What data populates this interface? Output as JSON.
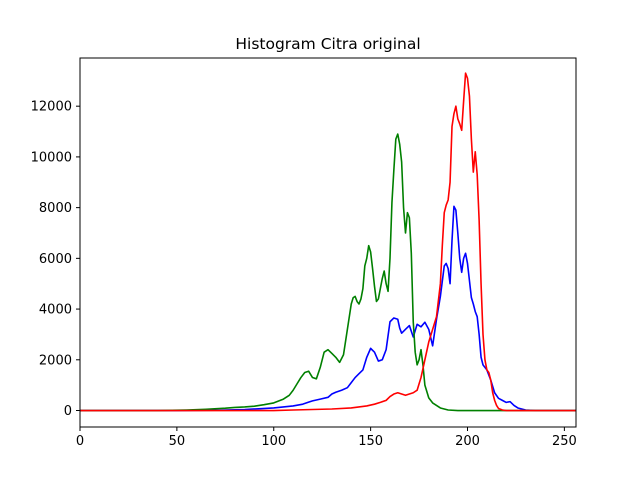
{
  "chart_data": {
    "type": "line",
    "title": "Histogram Citra original",
    "xlabel": "",
    "ylabel": "",
    "xlim": [
      0,
      256
    ],
    "ylim": [
      -650,
      13900
    ],
    "xticks": [
      0,
      50,
      100,
      150,
      200,
      250
    ],
    "yticks": [
      0,
      2000,
      4000,
      6000,
      8000,
      10000,
      12000
    ],
    "grid": false,
    "legend": "none",
    "series": [
      {
        "color": "#0000ff",
        "points": [
          [
            0,
            0
          ],
          [
            50,
            0
          ],
          [
            70,
            10
          ],
          [
            85,
            40
          ],
          [
            100,
            100
          ],
          [
            110,
            180
          ],
          [
            115,
            250
          ],
          [
            118,
            330
          ],
          [
            120,
            380
          ],
          [
            124,
            450
          ],
          [
            128,
            520
          ],
          [
            130,
            650
          ],
          [
            132,
            720
          ],
          [
            135,
            800
          ],
          [
            138,
            900
          ],
          [
            140,
            1100
          ],
          [
            142,
            1300
          ],
          [
            144,
            1450
          ],
          [
            146,
            1600
          ],
          [
            148,
            2100
          ],
          [
            150,
            2450
          ],
          [
            152,
            2300
          ],
          [
            154,
            1950
          ],
          [
            156,
            2000
          ],
          [
            158,
            2400
          ],
          [
            160,
            3500
          ],
          [
            162,
            3650
          ],
          [
            164,
            3600
          ],
          [
            165,
            3250
          ],
          [
            166,
            3050
          ],
          [
            168,
            3200
          ],
          [
            170,
            3350
          ],
          [
            172,
            2900
          ],
          [
            174,
            3400
          ],
          [
            176,
            3300
          ],
          [
            178,
            3480
          ],
          [
            180,
            3200
          ],
          [
            182,
            2550
          ],
          [
            184,
            3600
          ],
          [
            186,
            4500
          ],
          [
            188,
            5700
          ],
          [
            189,
            5800
          ],
          [
            190,
            5600
          ],
          [
            191,
            5000
          ],
          [
            192,
            6700
          ],
          [
            193,
            8050
          ],
          [
            194,
            7900
          ],
          [
            195,
            7000
          ],
          [
            196,
            6000
          ],
          [
            197,
            5450
          ],
          [
            198,
            6000
          ],
          [
            199,
            6200
          ],
          [
            200,
            5800
          ],
          [
            202,
            4450
          ],
          [
            203,
            4200
          ],
          [
            204,
            3900
          ],
          [
            205,
            3700
          ],
          [
            206,
            3000
          ],
          [
            207,
            2100
          ],
          [
            208,
            1800
          ],
          [
            210,
            1600
          ],
          [
            212,
            1200
          ],
          [
            214,
            700
          ],
          [
            216,
            480
          ],
          [
            218,
            400
          ],
          [
            220,
            320
          ],
          [
            222,
            350
          ],
          [
            224,
            200
          ],
          [
            226,
            100
          ],
          [
            230,
            20
          ],
          [
            235,
            0
          ],
          [
            256,
            0
          ]
        ]
      },
      {
        "color": "#008000",
        "points": [
          [
            0,
            0
          ],
          [
            40,
            0
          ],
          [
            55,
            20
          ],
          [
            65,
            50
          ],
          [
            75,
            90
          ],
          [
            80,
            120
          ],
          [
            85,
            140
          ],
          [
            90,
            170
          ],
          [
            95,
            230
          ],
          [
            100,
            300
          ],
          [
            105,
            450
          ],
          [
            108,
            600
          ],
          [
            110,
            800
          ],
          [
            112,
            1050
          ],
          [
            114,
            1300
          ],
          [
            116,
            1500
          ],
          [
            118,
            1550
          ],
          [
            120,
            1300
          ],
          [
            122,
            1250
          ],
          [
            124,
            1700
          ],
          [
            126,
            2300
          ],
          [
            128,
            2400
          ],
          [
            130,
            2250
          ],
          [
            132,
            2100
          ],
          [
            134,
            1900
          ],
          [
            136,
            2200
          ],
          [
            138,
            3200
          ],
          [
            140,
            4200
          ],
          [
            141,
            4450
          ],
          [
            142,
            4500
          ],
          [
            143,
            4300
          ],
          [
            144,
            4200
          ],
          [
            145,
            4400
          ],
          [
            146,
            4800
          ],
          [
            147,
            5700
          ],
          [
            148,
            6000
          ],
          [
            149,
            6500
          ],
          [
            150,
            6250
          ],
          [
            151,
            5600
          ],
          [
            152,
            4900
          ],
          [
            153,
            4300
          ],
          [
            154,
            4400
          ],
          [
            155,
            4800
          ],
          [
            156,
            5200
          ],
          [
            157,
            5500
          ],
          [
            158,
            5000
          ],
          [
            159,
            4700
          ],
          [
            160,
            6000
          ],
          [
            161,
            8200
          ],
          [
            162,
            9500
          ],
          [
            163,
            10700
          ],
          [
            164,
            10900
          ],
          [
            165,
            10500
          ],
          [
            166,
            9800
          ],
          [
            167,
            8000
          ],
          [
            168,
            7000
          ],
          [
            169,
            7800
          ],
          [
            170,
            7600
          ],
          [
            171,
            6200
          ],
          [
            172,
            3500
          ],
          [
            173,
            2300
          ],
          [
            174,
            1800
          ],
          [
            175,
            2000
          ],
          [
            176,
            2400
          ],
          [
            177,
            1800
          ],
          [
            178,
            1000
          ],
          [
            180,
            500
          ],
          [
            182,
            300
          ],
          [
            184,
            200
          ],
          [
            186,
            100
          ],
          [
            190,
            20
          ],
          [
            195,
            0
          ],
          [
            256,
            0
          ]
        ]
      },
      {
        "color": "#ff0000",
        "points": [
          [
            0,
            0
          ],
          [
            100,
            0
          ],
          [
            110,
            20
          ],
          [
            120,
            40
          ],
          [
            130,
            60
          ],
          [
            140,
            100
          ],
          [
            148,
            180
          ],
          [
            152,
            250
          ],
          [
            155,
            320
          ],
          [
            158,
            400
          ],
          [
            160,
            550
          ],
          [
            162,
            650
          ],
          [
            164,
            700
          ],
          [
            166,
            650
          ],
          [
            168,
            600
          ],
          [
            170,
            650
          ],
          [
            172,
            700
          ],
          [
            174,
            800
          ],
          [
            176,
            1300
          ],
          [
            178,
            2000
          ],
          [
            180,
            2700
          ],
          [
            182,
            3200
          ],
          [
            184,
            3700
          ],
          [
            186,
            5000
          ],
          [
            187,
            6500
          ],
          [
            188,
            7800
          ],
          [
            189,
            8100
          ],
          [
            190,
            8300
          ],
          [
            191,
            9000
          ],
          [
            192,
            11200
          ],
          [
            193,
            11700
          ],
          [
            194,
            12000
          ],
          [
            195,
            11500
          ],
          [
            196,
            11300
          ],
          [
            197,
            11050
          ],
          [
            198,
            12200
          ],
          [
            199,
            13300
          ],
          [
            200,
            13100
          ],
          [
            201,
            12400
          ],
          [
            202,
            10700
          ],
          [
            203,
            9400
          ],
          [
            204,
            10200
          ],
          [
            205,
            9300
          ],
          [
            206,
            7500
          ],
          [
            207,
            5000
          ],
          [
            208,
            3000
          ],
          [
            209,
            2000
          ],
          [
            210,
            1600
          ],
          [
            211,
            1500
          ],
          [
            212,
            1200
          ],
          [
            213,
            700
          ],
          [
            214,
            400
          ],
          [
            215,
            200
          ],
          [
            216,
            80
          ],
          [
            218,
            20
          ],
          [
            220,
            0
          ],
          [
            256,
            0
          ]
        ]
      }
    ]
  }
}
